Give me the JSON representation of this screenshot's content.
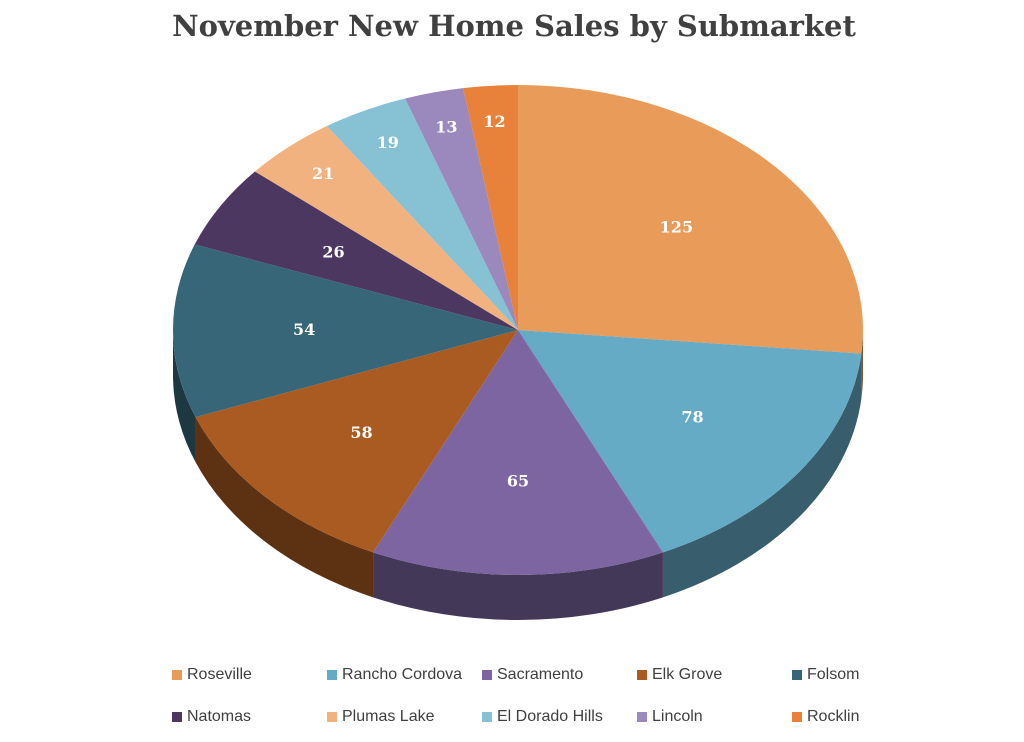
{
  "chart_data": {
    "type": "pie",
    "title": "November New Home Sales by Submarket",
    "categories": [
      "Roseville",
      "Rancho Cordova",
      "Sacramento",
      "Elk Grove",
      "Folsom",
      "Natomas",
      "Plumas Lake",
      "El Dorado Hills",
      "Lincoln",
      "Rocklin"
    ],
    "values": [
      125,
      78,
      65,
      58,
      54,
      26,
      21,
      19,
      13,
      12
    ],
    "colors": [
      "#e99b5a",
      "#65abc6",
      "#7c65a1",
      "#a95b22",
      "#376678",
      "#4b3760",
      "#f1b27f",
      "#87c1d4",
      "#9b89bd",
      "#e8813a"
    ],
    "legend": "bottom"
  }
}
